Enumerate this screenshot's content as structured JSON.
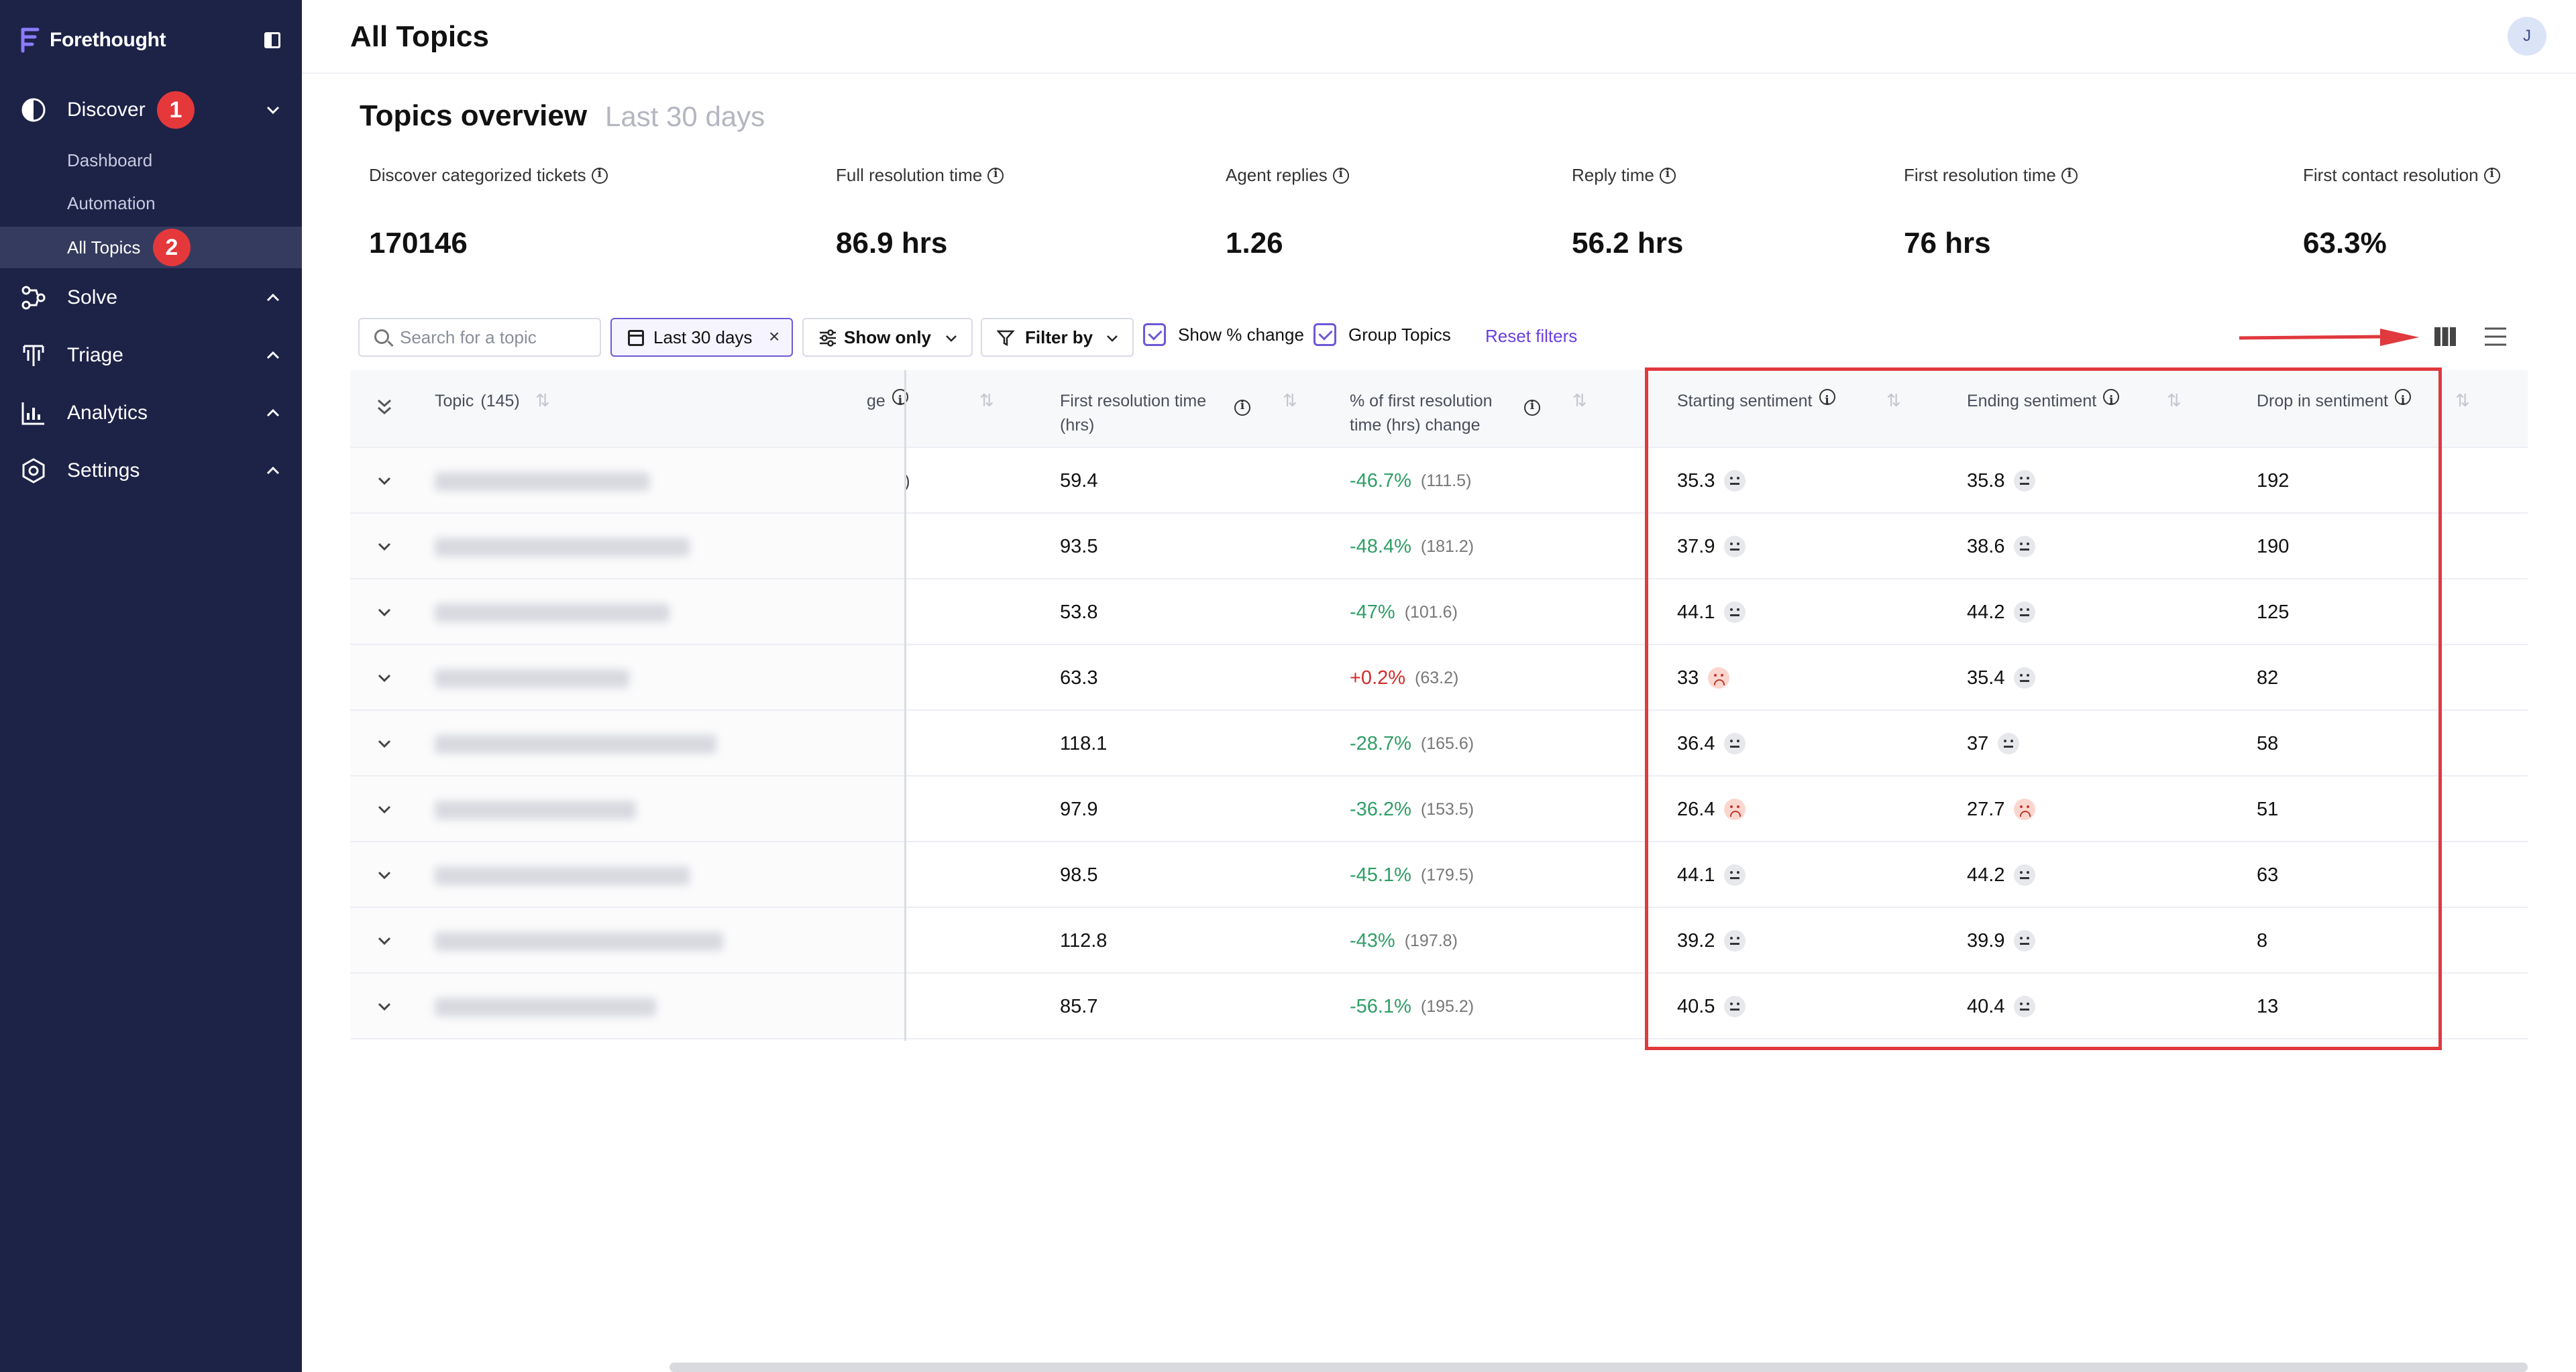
{
  "brand": {
    "name": "Forethought"
  },
  "sidebar": {
    "items": [
      {
        "label": "Discover",
        "icon": "discover-icon",
        "expanded": true,
        "badge": "1"
      },
      {
        "label": "Solve",
        "icon": "solve-icon",
        "expanded": false
      },
      {
        "label": "Triage",
        "icon": "triage-icon",
        "expanded": false
      },
      {
        "label": "Analytics",
        "icon": "analytics-icon",
        "expanded": false
      },
      {
        "label": "Settings",
        "icon": "settings-icon",
        "expanded": false
      }
    ],
    "discover_sub": [
      {
        "label": "Dashboard"
      },
      {
        "label": "Automation"
      },
      {
        "label": "All Topics",
        "active": true,
        "badge": "2"
      }
    ]
  },
  "header": {
    "title": "All Topics",
    "avatar_initial": "J"
  },
  "overview": {
    "title": "Topics overview",
    "period": "Last 30 days",
    "metrics": [
      {
        "label": "Discover categorized tickets",
        "value": "170146"
      },
      {
        "label": "Full resolution time",
        "value": "86.9 hrs"
      },
      {
        "label": "Agent replies",
        "value": "1.26"
      },
      {
        "label": "Reply time",
        "value": "56.2 hrs"
      },
      {
        "label": "First resolution time",
        "value": "76 hrs"
      },
      {
        "label": "First contact resolution",
        "value": "63.3%"
      }
    ]
  },
  "toolbar": {
    "search_placeholder": "Search for a topic",
    "date_chip": "Last 30 days",
    "show_only": "Show only",
    "filter_by": "Filter by",
    "show_pct_change": "Show % change",
    "group_topics": "Group Topics",
    "reset": "Reset filters"
  },
  "table": {
    "headers": {
      "topic": "Topic",
      "topic_count": "(145)",
      "partial_change": "ge",
      "first_resolution_time_l1": "First resolution time",
      "first_resolution_time_l2": "(hrs)",
      "pct_change_l1": "% of first resolution",
      "pct_change_l2": "time (hrs) change",
      "starting_sentiment": "Starting sentiment",
      "ending_sentiment": "Ending sentiment",
      "drop_in_sentiment": "Drop in sentiment"
    },
    "rows": [
      {
        "partial": ")",
        "frt": "59.4",
        "pct": "-46.7%",
        "pct_dir": "pos",
        "prev": "(111.5)",
        "start": "35.3",
        "start_face": "neutral",
        "end": "35.8",
        "end_face": "neutral",
        "drop": "192"
      },
      {
        "partial": "",
        "frt": "93.5",
        "pct": "-48.4%",
        "pct_dir": "pos",
        "prev": "(181.2)",
        "start": "37.9",
        "start_face": "neutral",
        "end": "38.6",
        "end_face": "neutral",
        "drop": "190"
      },
      {
        "partial": "",
        "frt": "53.8",
        "pct": "-47%",
        "pct_dir": "pos",
        "prev": "(101.6)",
        "start": "44.1",
        "start_face": "neutral",
        "end": "44.2",
        "end_face": "neutral",
        "drop": "125"
      },
      {
        "partial": "",
        "frt": "63.3",
        "pct": "+0.2%",
        "pct_dir": "neg",
        "prev": "(63.2)",
        "start": "33",
        "start_face": "sad",
        "end": "35.4",
        "end_face": "neutral",
        "drop": "82"
      },
      {
        "partial": "",
        "frt": "118.1",
        "pct": "-28.7%",
        "pct_dir": "pos",
        "prev": "(165.6)",
        "start": "36.4",
        "start_face": "neutral",
        "end": "37",
        "end_face": "neutral",
        "drop": "58"
      },
      {
        "partial": "",
        "frt": "97.9",
        "pct": "-36.2%",
        "pct_dir": "pos",
        "prev": "(153.5)",
        "start": "26.4",
        "start_face": "sad",
        "end": "27.7",
        "end_face": "sad",
        "drop": "51"
      },
      {
        "partial": "",
        "frt": "98.5",
        "pct": "-45.1%",
        "pct_dir": "pos",
        "prev": "(179.5)",
        "start": "44.1",
        "start_face": "neutral",
        "end": "44.2",
        "end_face": "neutral",
        "drop": "63"
      },
      {
        "partial": "",
        "frt": "112.8",
        "pct": "-43%",
        "pct_dir": "pos",
        "prev": "(197.8)",
        "start": "39.2",
        "start_face": "neutral",
        "end": "39.9",
        "end_face": "neutral",
        "drop": "8"
      },
      {
        "partial": "",
        "frt": "85.7",
        "pct": "-56.1%",
        "pct_dir": "pos",
        "prev": "(195.2)",
        "start": "40.5",
        "start_face": "neutral",
        "end": "40.4",
        "end_face": "neutral",
        "drop": "13"
      }
    ]
  },
  "colors": {
    "sidebar_bg": "#1d2247",
    "accent": "#6b59d6",
    "positive": "#2f9e66",
    "negative": "#d12b2b",
    "annotation": "#e0393e"
  }
}
